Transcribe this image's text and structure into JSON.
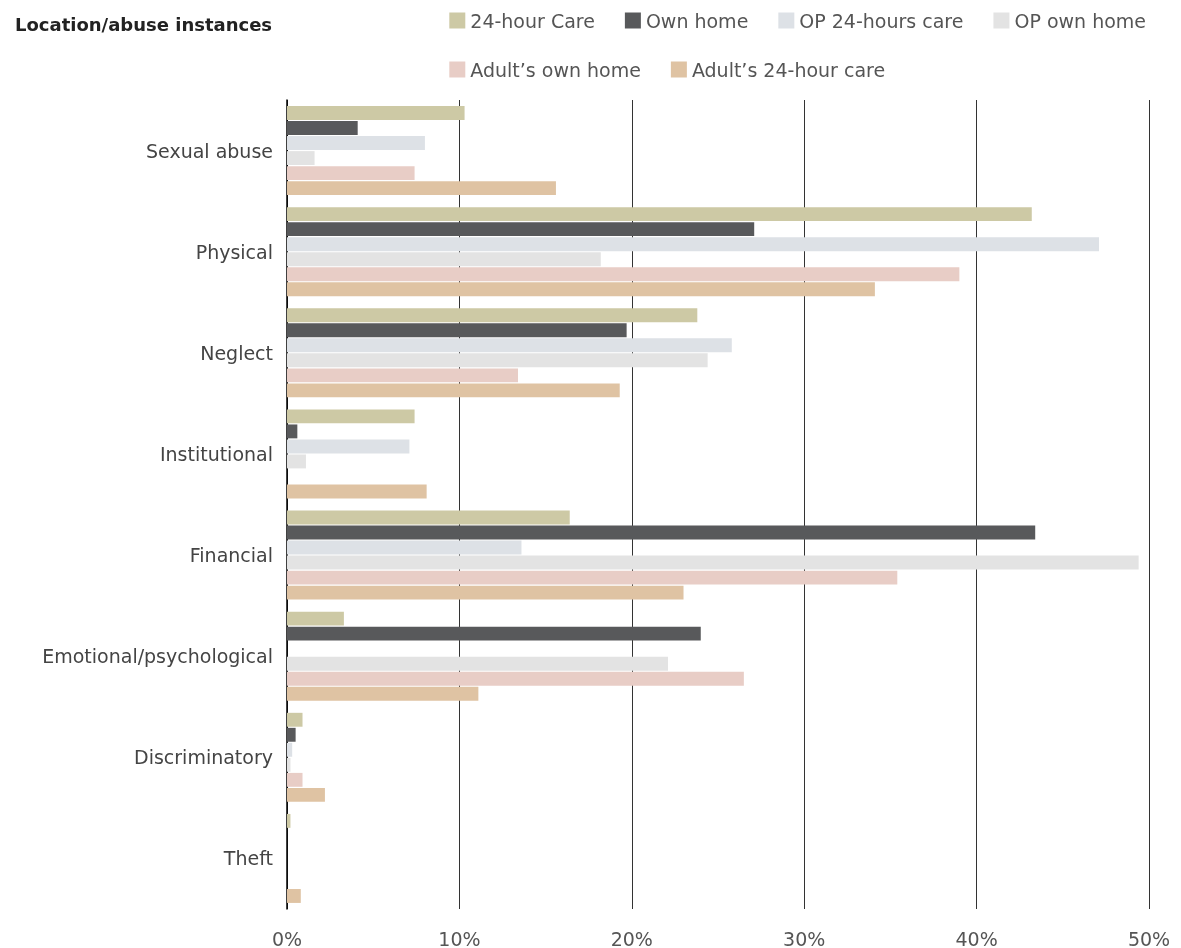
{
  "chart_data": {
    "type": "bar",
    "orientation": "horizontal",
    "title": "Location/abuse instances",
    "categories": [
      "Sexual abuse",
      "Physical",
      "Neglect",
      "Institutional",
      "Financial",
      "Emotional/psychological",
      "Discriminatory",
      "Theft"
    ],
    "series": [
      {
        "name": "24-hour Care",
        "color": "#cdc9a5",
        "values": [
          10.3,
          43.2,
          23.8,
          7.4,
          16.4,
          3.3,
          0.9,
          0.2
        ]
      },
      {
        "name": "Own home",
        "color": "#58595b",
        "values": [
          4.1,
          27.1,
          19.7,
          0.6,
          43.4,
          24.0,
          0.5,
          0
        ]
      },
      {
        "name": "OP 24-hours care",
        "color": "#dde1e6",
        "values": [
          8.0,
          47.1,
          25.8,
          7.1,
          13.6,
          0,
          0.3,
          0
        ]
      },
      {
        "name": "OP own home",
        "color": "#e3e3e3",
        "values": [
          1.6,
          18.2,
          24.4,
          1.1,
          49.4,
          22.1,
          0.2,
          0
        ]
      },
      {
        "name": "Adult’s own home",
        "color": "#e8cdc6",
        "values": [
          7.4,
          39.0,
          13.4,
          0,
          35.4,
          26.5,
          0.9,
          0
        ]
      },
      {
        "name": "Adult’s 24-hour care",
        "color": "#dfc3a3",
        "values": [
          15.6,
          34.1,
          19.3,
          8.1,
          23.0,
          11.1,
          2.2,
          0.8
        ]
      }
    ],
    "xlim": [
      0,
      50
    ],
    "xticks": [
      {
        "value": 0,
        "label": "0%"
      },
      {
        "value": 10,
        "label": "10%"
      },
      {
        "value": 20,
        "label": "20%"
      },
      {
        "value": 30,
        "label": "30%"
      },
      {
        "value": 40,
        "label": "40%"
      },
      {
        "value": 50,
        "label": "50%"
      }
    ],
    "grid": "x",
    "legend": "top right"
  }
}
